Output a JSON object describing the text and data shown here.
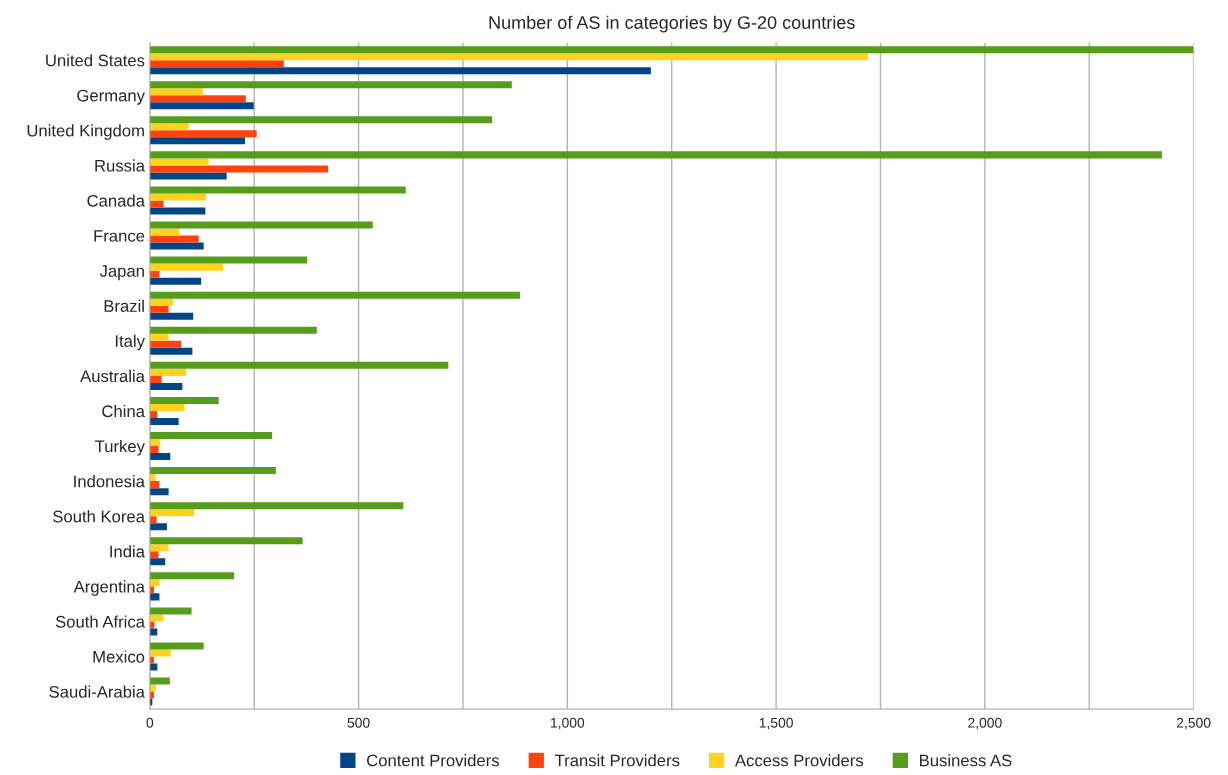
{
  "chart_data": {
    "type": "bar",
    "orientation": "horizontal",
    "title": "Number of AS in categories by G-20 countries",
    "categories": [
      "United States",
      "Germany",
      "United Kingdom",
      "Russia",
      "Canada",
      "France",
      "Japan",
      "Brazil",
      "Italy",
      "Australia",
      "China",
      "Turkey",
      "Indonesia",
      "South Korea",
      "India",
      "Argentina",
      "South Africa",
      "Mexico",
      "Saudi-Arabia"
    ],
    "series": [
      {
        "name": "Content Providers",
        "color": "#004586",
        "values": [
          1200,
          249,
          228,
          184,
          133,
          129,
          123,
          104,
          102,
          78,
          69,
          49,
          45,
          41,
          37,
          23,
          18,
          18,
          6
        ]
      },
      {
        "name": "Transit Providers",
        "color": "#ff420e",
        "values": [
          321,
          230,
          256,
          427,
          33,
          117,
          23,
          45,
          75,
          28,
          18,
          21,
          23,
          16,
          21,
          10,
          11,
          10,
          10
        ]
      },
      {
        "name": "Access Providers",
        "color": "#ffd320",
        "values": [
          1720,
          127,
          93,
          141,
          135,
          71,
          175,
          56,
          45,
          87,
          83,
          25,
          14,
          106,
          45,
          23,
          33,
          50,
          14
        ]
      },
      {
        "name": "Business AS",
        "color": "#579d1c",
        "values": [
          2500,
          867,
          820,
          2424,
          613,
          534,
          377,
          887,
          400,
          715,
          165,
          293,
          302,
          607,
          366,
          202,
          100,
          129,
          48
        ]
      }
    ],
    "xlim": [
      0,
      2500
    ],
    "xticks": [
      0,
      {
        "value": 250,
        "label": null
      },
      500,
      {
        "value": 750,
        "label": null
      },
      {
        "value": 1000,
        "label": "1,000"
      },
      {
        "value": 1250,
        "label": null
      },
      {
        "value": 1500,
        "label": "1,500"
      },
      {
        "value": 1750,
        "label": null
      },
      {
        "value": 2000,
        "label": "2,000"
      },
      {
        "value": 2250,
        "label": null
      },
      {
        "value": 2500,
        "label": "2,500"
      }
    ],
    "grid": "x",
    "legend": "bottom",
    "marker": "square"
  }
}
